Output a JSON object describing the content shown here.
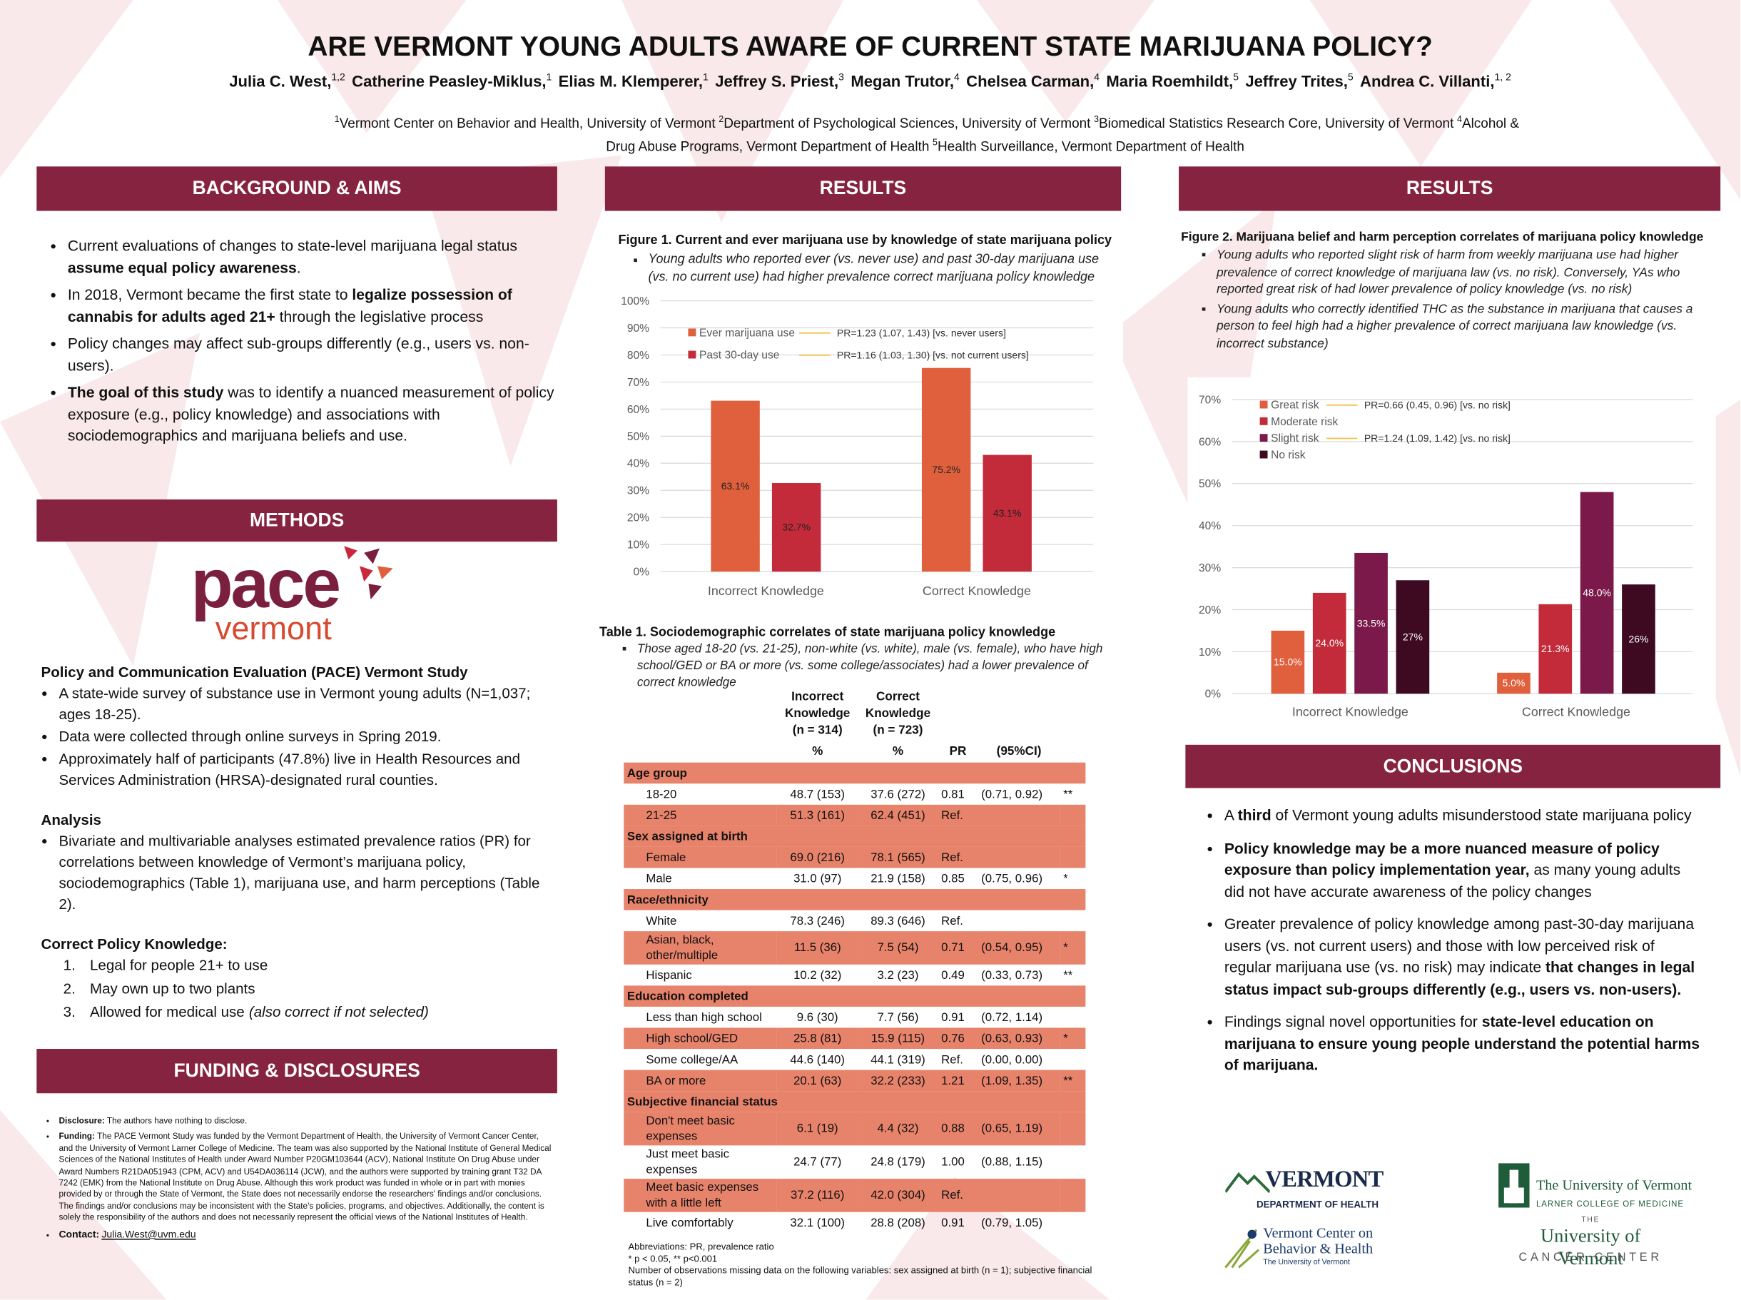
{
  "header": {
    "title": "ARE VERMONT YOUNG ADULTS AWARE OF CURRENT STATE MARIJUANA POLICY?",
    "authors": [
      {
        "name": "Julia C. West,",
        "sup": "1,2"
      },
      {
        "name": "Catherine Peasley-Miklus,",
        "sup": "1"
      },
      {
        "name": "Elias M. Klemperer,",
        "sup": "1"
      },
      {
        "name": "Jeffrey S. Priest,",
        "sup": "3"
      },
      {
        "name": "Megan Trutor,",
        "sup": "4"
      },
      {
        "name": "Chelsea Carman,",
        "sup": "4"
      },
      {
        "name": "Maria Roemhildt,",
        "sup": "5"
      },
      {
        "name": "Jeffrey Trites,",
        "sup": "5"
      },
      {
        "name": "Andrea C. Villanti,",
        "sup": "1, 2"
      }
    ],
    "affiliations": [
      {
        "sup": "1",
        "text": "Vermont Center on Behavior and Health, University of Vermont"
      },
      {
        "sup": "2",
        "text": "Department of Psychological Sciences, University of Vermont"
      },
      {
        "sup": "3",
        "text": "Biomedical Statistics Research Core, University of Vermont"
      },
      {
        "sup": "4",
        "text": "Alcohol & Drug Abuse Programs, Vermont Department of Health"
      },
      {
        "sup": "5",
        "text": "Health Surveillance, Vermont Department of Health"
      }
    ]
  },
  "background": {
    "heading": "BACKGROUND & AIMS",
    "bullets": [
      [
        {
          "t": "Current evaluations of changes to state-level marijuana legal status "
        },
        {
          "t": "assume equal policy awareness",
          "b": true
        },
        {
          "t": "."
        }
      ],
      [
        {
          "t": "In 2018, Vermont became the first state to "
        },
        {
          "t": "legalize possession of cannabis for adults aged 21+",
          "b": true
        },
        {
          "t": " through the legislative process"
        }
      ],
      [
        {
          "t": "Policy changes may affect sub-groups differently (e.g., users vs. non-users)."
        }
      ],
      [
        {
          "t": "The goal of this study",
          "b": true
        },
        {
          "t": " was to identify a nuanced measurement of policy exposure (e.g., policy knowledge) and associations with sociodemographics and marijuana beliefs and use."
        }
      ]
    ]
  },
  "methods": {
    "heading": "METHODS",
    "logo": {
      "top": "pace",
      "bottom": "vermont"
    },
    "study_title": "Policy and Communication Evaluation (PACE) Vermont Study",
    "study_bullets": [
      "A state-wide survey of substance use in Vermont young adults (N=1,037; ages 18-25).",
      "Data were collected through online surveys in Spring 2019.",
      "Approximately half of participants (47.8%) live in Health Resources and Services Administration (HRSA)-designated rural counties."
    ],
    "analysis_title": "Analysis",
    "analysis_bullets": [
      "Bivariate and multivariable analyses estimated prevalence ratios (PR) for correlations between knowledge of Vermont’s marijuana policy, sociodemographics (Table 1), marijuana use, and harm perceptions (Table 2)."
    ],
    "knowledge_title": "Correct Policy Knowledge:",
    "knowledge_items": [
      {
        "num": "1.",
        "text": "Legal for people 21+ to use"
      },
      {
        "num": "2.",
        "text": "May own up to two plants"
      },
      {
        "num": "3.",
        "text": "Allowed for medical use",
        "note": "(also correct if not selected)"
      }
    ]
  },
  "funding": {
    "heading": "FUNDING & DISCLOSURES",
    "items": [
      {
        "label": "Disclosure:",
        "text": "The authors have nothing to disclose."
      },
      {
        "label": "Funding:",
        "text": "The PACE Vermont Study was funded by the Vermont Department of Health, the University of Vermont Cancer Center, and the University of Vermont Larner College of Medicine. The team was also supported by the National Institute of General Medical Sciences of the National Institutes of Health under Award Number P20GM103644 (ACV), National Institute On Drug Abuse under Award Numbers R21DA051943 (CPM, ACV) and U54DA036114 (JCW), and the authors were supported by training grant T32 DA 7242 (EMK) from the National Institute on Drug Abuse. Although this work product was funded in whole or in part with monies provided by or through the State of Vermont, the State does not necessarily endorse the researchers' findings and/or conclusions. The findings and/or conclusions may be inconsistent with the State's policies, programs, and objectives. Additionally, the content is solely the responsibility of the authors and does not necessarily represent the official views of the National Institutes of Health."
      },
      {
        "label": "Contact:",
        "text": "Julia.West@uvm.edu"
      }
    ]
  },
  "results_left": {
    "heading": "RESULTS",
    "figure_title": "Figure 1. Current and ever marijuana use by knowledge of state marijuana policy",
    "figure_bullets": [
      "Young adults who reported ever (vs. never use) and past 30-day marijuana use (vs. no current use) had higher prevalence correct marijuana policy knowledge"
    ],
    "table": {
      "title": "Table 1. Sociodemographic correlates of state marijuana policy knowledge",
      "bullets": [
        "Those aged 18-20 (vs. 21-25), non-white (vs. white), male (vs. female), who have high school/GED or BA or more (vs. some college/associates) had a lower prevalence of correct knowledge"
      ],
      "columns": [
        "Incorrect Knowledge (n = 314)",
        "Correct Knowledge (n = 723)"
      ],
      "subheader": [
        "%",
        "%",
        "PR",
        "(95%CI)"
      ],
      "groups": [
        {
          "name": "Age group",
          "rows": [
            {
              "cells": [
                "18-20",
                "48.7 (153)",
                "37.6 (272)",
                "0.81",
                "(0.71, 0.92)",
                "**"
              ]
            },
            {
              "cells": [
                "21-25",
                "51.3 (161)",
                "62.4 (451)",
                "Ref."
              ],
              "highlight": true
            }
          ]
        },
        {
          "name": "Sex assigned at birth",
          "rows": [
            {
              "cells": [
                "Female",
                "69.0 (216)",
                "78.1 (565)",
                "Ref."
              ],
              "highlight": true
            },
            {
              "cells": [
                "Male",
                "31.0 (97)",
                "21.9 (158)",
                "0.85",
                "(0.75, 0.96)",
                "*"
              ]
            }
          ]
        },
        {
          "name": "Race/ethnicity",
          "rows": [
            {
              "cells": [
                "White",
                "78.3 (246)",
                "89.3 (646)",
                "Ref."
              ]
            },
            {
              "cells": [
                "Asian, black, other/multiple",
                "11.5 (36)",
                "7.5 (54)",
                "0.71",
                "(0.54, 0.95)",
                "*"
              ],
              "highlight": true
            },
            {
              "cells": [
                "Hispanic",
                "10.2 (32)",
                "3.2 (23)",
                "0.49",
                "(0.33, 0.73)",
                "**"
              ]
            }
          ]
        },
        {
          "name": "Education completed",
          "rows": [
            {
              "cells": [
                "Less than high school",
                "9.6 (30)",
                "7.7 (56)",
                "0.91",
                "(0.72, 1.14)"
              ]
            },
            {
              "cells": [
                "High school/GED",
                "25.8 (81)",
                "15.9 (115)",
                "0.76",
                "(0.63, 0.93)",
                "*"
              ],
              "highlight": true
            },
            {
              "cells": [
                "Some college/AA",
                "44.6 (140)",
                "44.1 (319)",
                "Ref.",
                "(0.00, 0.00)"
              ]
            },
            {
              "cells": [
                "BA or more",
                "20.1 (63)",
                "32.2 (233)",
                "1.21",
                "(1.09, 1.35)",
                "**"
              ],
              "highlight": true
            }
          ]
        },
        {
          "name": "Subjective financial status",
          "rows": [
            {
              "cells": [
                "Don't meet basic expenses",
                "6.1 (19)",
                "4.4 (32)",
                "0.88",
                "(0.65, 1.19)"
              ],
              "highlight": true
            },
            {
              "cells": [
                "Just meet basic expenses",
                "24.7 (77)",
                "24.8 (179)",
                "1.00",
                "(0.88, 1.15)"
              ]
            },
            {
              "cells": [
                "Meet basic expenses with a little left",
                "37.2 (116)",
                "42.0 (304)",
                "Ref."
              ],
              "highlight": true
            },
            {
              "cells": [
                "Live comfortably",
                "32.1 (100)",
                "28.8 (208)",
                "0.91",
                "(0.79, 1.05)"
              ]
            }
          ]
        }
      ],
      "notes": [
        "Abbreviations: PR, prevalence ratio",
        "* p < 0.05, ** p<0.001",
        "Number of observations missing data on the following variables: sex assigned at birth (n = 1); subjective financial status (n = 2)"
      ]
    }
  },
  "results_right": {
    "heading": "RESULTS",
    "figure_title": "Figure 2. Marijuana belief and harm perception correlates of marijuana policy knowledge",
    "figure_bullets": [
      "Young adults who reported slight risk of harm from weekly marijuana use had higher prevalence of correct knowledge of marijuana law (vs. no risk). Conversely, YAs who reported great risk of had lower prevalence of policy knowledge (vs. no risk)",
      "Young adults who correctly identified THC as the substance in marijuana that causes a person to feel high had a higher prevalence of correct marijuana law knowledge (vs. incorrect substance)"
    ]
  },
  "chart_data": [
    {
      "type": "bar",
      "categories": [
        "Incorrect Knowledge",
        "Correct Knowledge"
      ],
      "series": [
        {
          "name": "Ever marijuana use",
          "color": "#e0603e",
          "values": [
            63.1,
            75.2
          ],
          "value_labels": [
            "63.1%",
            "75.2%"
          ]
        },
        {
          "name": "Past 30-day use",
          "color": "#c42b3a",
          "values": [
            32.7,
            43.1
          ],
          "value_labels": [
            "32.7%",
            "43.1%"
          ]
        }
      ],
      "annotations": [
        "PR=1.23 (1.07, 1.43) [vs. never users]",
        "PR=1.16 (1.03, 1.30) [vs. not current users]"
      ],
      "ylim": [
        0,
        100
      ],
      "yticks": [
        {
          "value": 0,
          "label": "0%"
        },
        {
          "value": 10,
          "label": "10%"
        },
        {
          "value": 20,
          "label": "20%"
        },
        {
          "value": 30,
          "label": "30%"
        },
        {
          "value": 40,
          "label": "40%"
        },
        {
          "value": 50,
          "label": "50%"
        },
        {
          "value": 60,
          "label": "60%"
        },
        {
          "value": 70,
          "label": "70%"
        },
        {
          "value": 80,
          "label": "80%"
        },
        {
          "value": 90,
          "label": "90%"
        },
        {
          "value": 100,
          "label": "100%"
        }
      ],
      "grid": true,
      "legend": "top-left"
    },
    {
      "type": "bar",
      "categories": [
        "Incorrect Knowledge",
        "Correct Knowledge"
      ],
      "series": [
        {
          "name": "Great risk",
          "color": "#e0603e",
          "values": [
            15.0,
            5.0
          ],
          "value_labels": [
            "15.0%",
            "5.0%"
          ]
        },
        {
          "name": "Moderate risk",
          "color": "#c42b3a",
          "values": [
            24.0,
            21.3
          ],
          "value_labels": [
            "24.0%",
            "21.3%"
          ]
        },
        {
          "name": "Slight risk",
          "color": "#7b1a4a",
          "values": [
            33.5,
            48.0
          ],
          "value_labels": [
            "33.5%",
            "48.0%"
          ]
        },
        {
          "name": "No risk",
          "color": "#3d0a22",
          "values": [
            27,
            26
          ],
          "value_labels": [
            "27%",
            "26%"
          ]
        }
      ],
      "annotations": [
        "PR=0.66 (0.45, 0.96) [vs. no risk]",
        "PR=1.24 (1.09, 1.42) [vs. no risk]"
      ],
      "ylim": [
        0,
        70
      ],
      "yticks": [
        {
          "value": 0,
          "label": "0%"
        },
        {
          "value": 10,
          "label": "10%"
        },
        {
          "value": 20,
          "label": "20%"
        },
        {
          "value": 30,
          "label": "30%"
        },
        {
          "value": 40,
          "label": "40%"
        },
        {
          "value": 50,
          "label": "50%"
        },
        {
          "value": 60,
          "label": "60%"
        },
        {
          "value": 70,
          "label": "70%"
        }
      ],
      "grid": true,
      "legend": "top-left"
    }
  ],
  "conclusions": {
    "heading": "CONCLUSIONS",
    "bullets": [
      [
        {
          "t": "A "
        },
        {
          "t": "third",
          "b": true
        },
        {
          "t": " of Vermont young adults misunderstood state marijuana policy"
        }
      ],
      [
        {
          "t": "Policy knowledge may be a more nuanced measure of policy exposure than policy implementation year,",
          "b": true
        },
        {
          "t": " as many young adults did not have accurate awareness of the policy changes"
        }
      ],
      [
        {
          "t": "Greater prevalence of policy knowledge among past-30-day marijuana users (vs. not current users) and those with low perceived risk of regular marijuana use (vs. no risk) may indicate "
        },
        {
          "t": "that changes in legal status impact sub-groups differently (e.g., users vs. non-users).",
          "b": true
        }
      ],
      [
        {
          "t": "Findings signal novel opportunities for "
        },
        {
          "t": "state-level education on marijuana to ensure young people understand the potential harms of marijuana.",
          "b": true
        }
      ]
    ]
  },
  "logos": {
    "health": [
      "VERMONT",
      "DEPARTMENT OF HEALTH"
    ],
    "larner": [
      "The University of Vermont",
      "LARNER COLLEGE OF MEDICINE"
    ],
    "vcbh": [
      "Vermont Center on",
      "Behavior & Health",
      "The University of Vermont"
    ],
    "cancer": [
      "THE",
      "University of Vermont",
      "CANCER CENTER"
    ]
  }
}
